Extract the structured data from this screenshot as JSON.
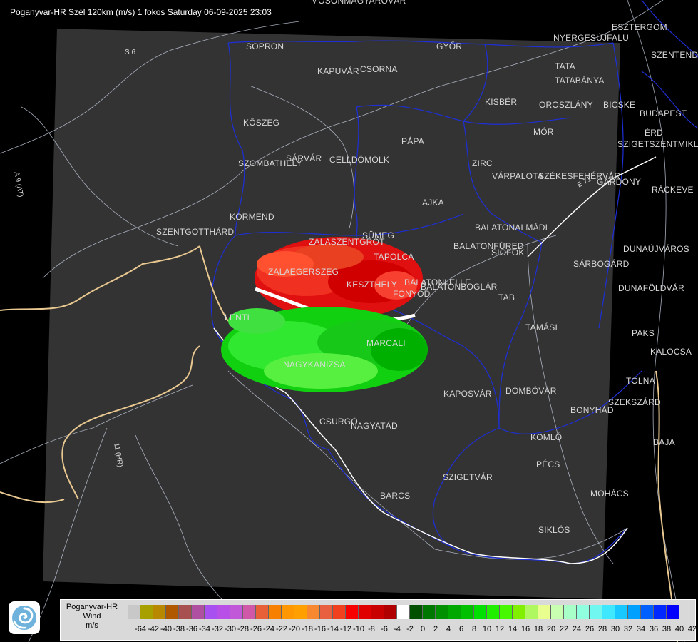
{
  "header": {
    "title": "Poganyvar-HR Szél 120km (m/s) 1 fokos Saturday 06-09-2025 23:03"
  },
  "map": {
    "cities": [
      {
        "name": "MOSONMAGYARÓVÁR"
      },
      {
        "name": "ESZTERGOM"
      },
      {
        "name": "NYERGESÚJFALU"
      },
      {
        "name": "SZENTENDRE"
      },
      {
        "name": "SOPRON"
      },
      {
        "name": "GYŐR"
      },
      {
        "name": "KAPUVÁR"
      },
      {
        "name": "CSORNA"
      },
      {
        "name": "TATA"
      },
      {
        "name": "TATABÁNYA"
      },
      {
        "name": "KISBÉR"
      },
      {
        "name": "OROSZLÁNY"
      },
      {
        "name": "BICSKE"
      },
      {
        "name": "BUDAPEST"
      },
      {
        "name": "ÉRD"
      },
      {
        "name": "KŐSZEG"
      },
      {
        "name": "MÓR"
      },
      {
        "name": "SZIGETSZENTMIKLÓS"
      },
      {
        "name": "PÁPA"
      },
      {
        "name": "SZOMBATHELY"
      },
      {
        "name": "SÁRVÁR"
      },
      {
        "name": "CELLDÖMÖLK"
      },
      {
        "name": "ZIRC"
      },
      {
        "name": "VÁRPALOTA"
      },
      {
        "name": "SZÉKESFEHÉRVÁR"
      },
      {
        "name": "GÁRDONY"
      },
      {
        "name": "RÁCKEVE"
      },
      {
        "name": "AJKA"
      },
      {
        "name": "KÖRMEND"
      },
      {
        "name": "SZENTGOTTHÁRD"
      },
      {
        "name": "SÜMEG"
      },
      {
        "name": "BALATONALMÁDI"
      },
      {
        "name": "ZALASZENTGRÓT"
      },
      {
        "name": "BALATONFÜRED"
      },
      {
        "name": "TAPOLCA"
      },
      {
        "name": "SIÓFOK"
      },
      {
        "name": "DUNAÚJVÁROS"
      },
      {
        "name": "ZALAEGERSZEG"
      },
      {
        "name": "SÁRBOGÁRD"
      },
      {
        "name": "KESZTHELY"
      },
      {
        "name": "BALATONLELLE"
      },
      {
        "name": "BALATONBOGLÁR"
      },
      {
        "name": "FONYÓD"
      },
      {
        "name": "DUNAFÖLDVÁR"
      },
      {
        "name": "TAB"
      },
      {
        "name": "LENTI"
      },
      {
        "name": "TAMÁSI"
      },
      {
        "name": "PAKS"
      },
      {
        "name": "MARCALI"
      },
      {
        "name": "KALOCSA"
      },
      {
        "name": "NAGYKANIZSA"
      },
      {
        "name": "TOLNA"
      },
      {
        "name": "KAPOSVÁR"
      },
      {
        "name": "DOMBÓVÁR"
      },
      {
        "name": "SZEKSZÁRD"
      },
      {
        "name": "BONYHÁD"
      },
      {
        "name": "CSURGÓ"
      },
      {
        "name": "NAGYATÁD"
      },
      {
        "name": "KOMLÓ"
      },
      {
        "name": "BAJA"
      },
      {
        "name": "PÉCS"
      },
      {
        "name": "SZIGETVÁR"
      },
      {
        "name": "MOHÁCS"
      },
      {
        "name": "BARCS"
      },
      {
        "name": "SIKLÓS"
      }
    ],
    "roads": [
      {
        "name": "S 6"
      },
      {
        "name": "A 9 (AT)"
      },
      {
        "name": "11 (HR)"
      },
      {
        "name": "E 71"
      }
    ]
  },
  "legend": {
    "title_line1": "Poganyvar-HR",
    "title_line2": "Wind",
    "unit": "m/s",
    "colors": [
      "#c8c8c8",
      "#a8a000",
      "#b88800",
      "#b05800",
      "#a85050",
      "#b050a0",
      "#a850f0",
      "#b850e8",
      "#c058d8",
      "#d058a8",
      "#e86038",
      "#f88000",
      "#ff9800",
      "#ffa000",
      "#f88830",
      "#e86040",
      "#f04020",
      "#f80000",
      "#e00000",
      "#c80000",
      "#b00000",
      "#ffffff",
      "#005000",
      "#007800",
      "#009000",
      "#00a800",
      "#00c000",
      "#00e000",
      "#20f000",
      "#48f800",
      "#80f000",
      "#b0f860",
      "#e8ff90",
      "#c8ffb0",
      "#a8ffc8",
      "#90ffe0",
      "#70f8f0",
      "#40e8ff",
      "#18c8ff",
      "#00a0ff",
      "#0060ff",
      "#0028ff",
      "#0000ff"
    ],
    "ticks": [
      "",
      "-64",
      "-42",
      "-40",
      "-38",
      "-36",
      "-34",
      "-32",
      "-30",
      "-28",
      "-26",
      "-24",
      "-22",
      "-20",
      "-18",
      "-16",
      "-14",
      "-12",
      "-10",
      "-8",
      "-6",
      "-4",
      "-2",
      "0",
      "2",
      "4",
      "6",
      "8",
      "10",
      "12",
      "14",
      "16",
      "18",
      "20",
      "22",
      "24",
      "26",
      "28",
      "30",
      "32",
      "34",
      "36",
      "38",
      "40",
      "42"
    ]
  },
  "logo": {
    "icon": "swirl-logo-icon"
  }
}
